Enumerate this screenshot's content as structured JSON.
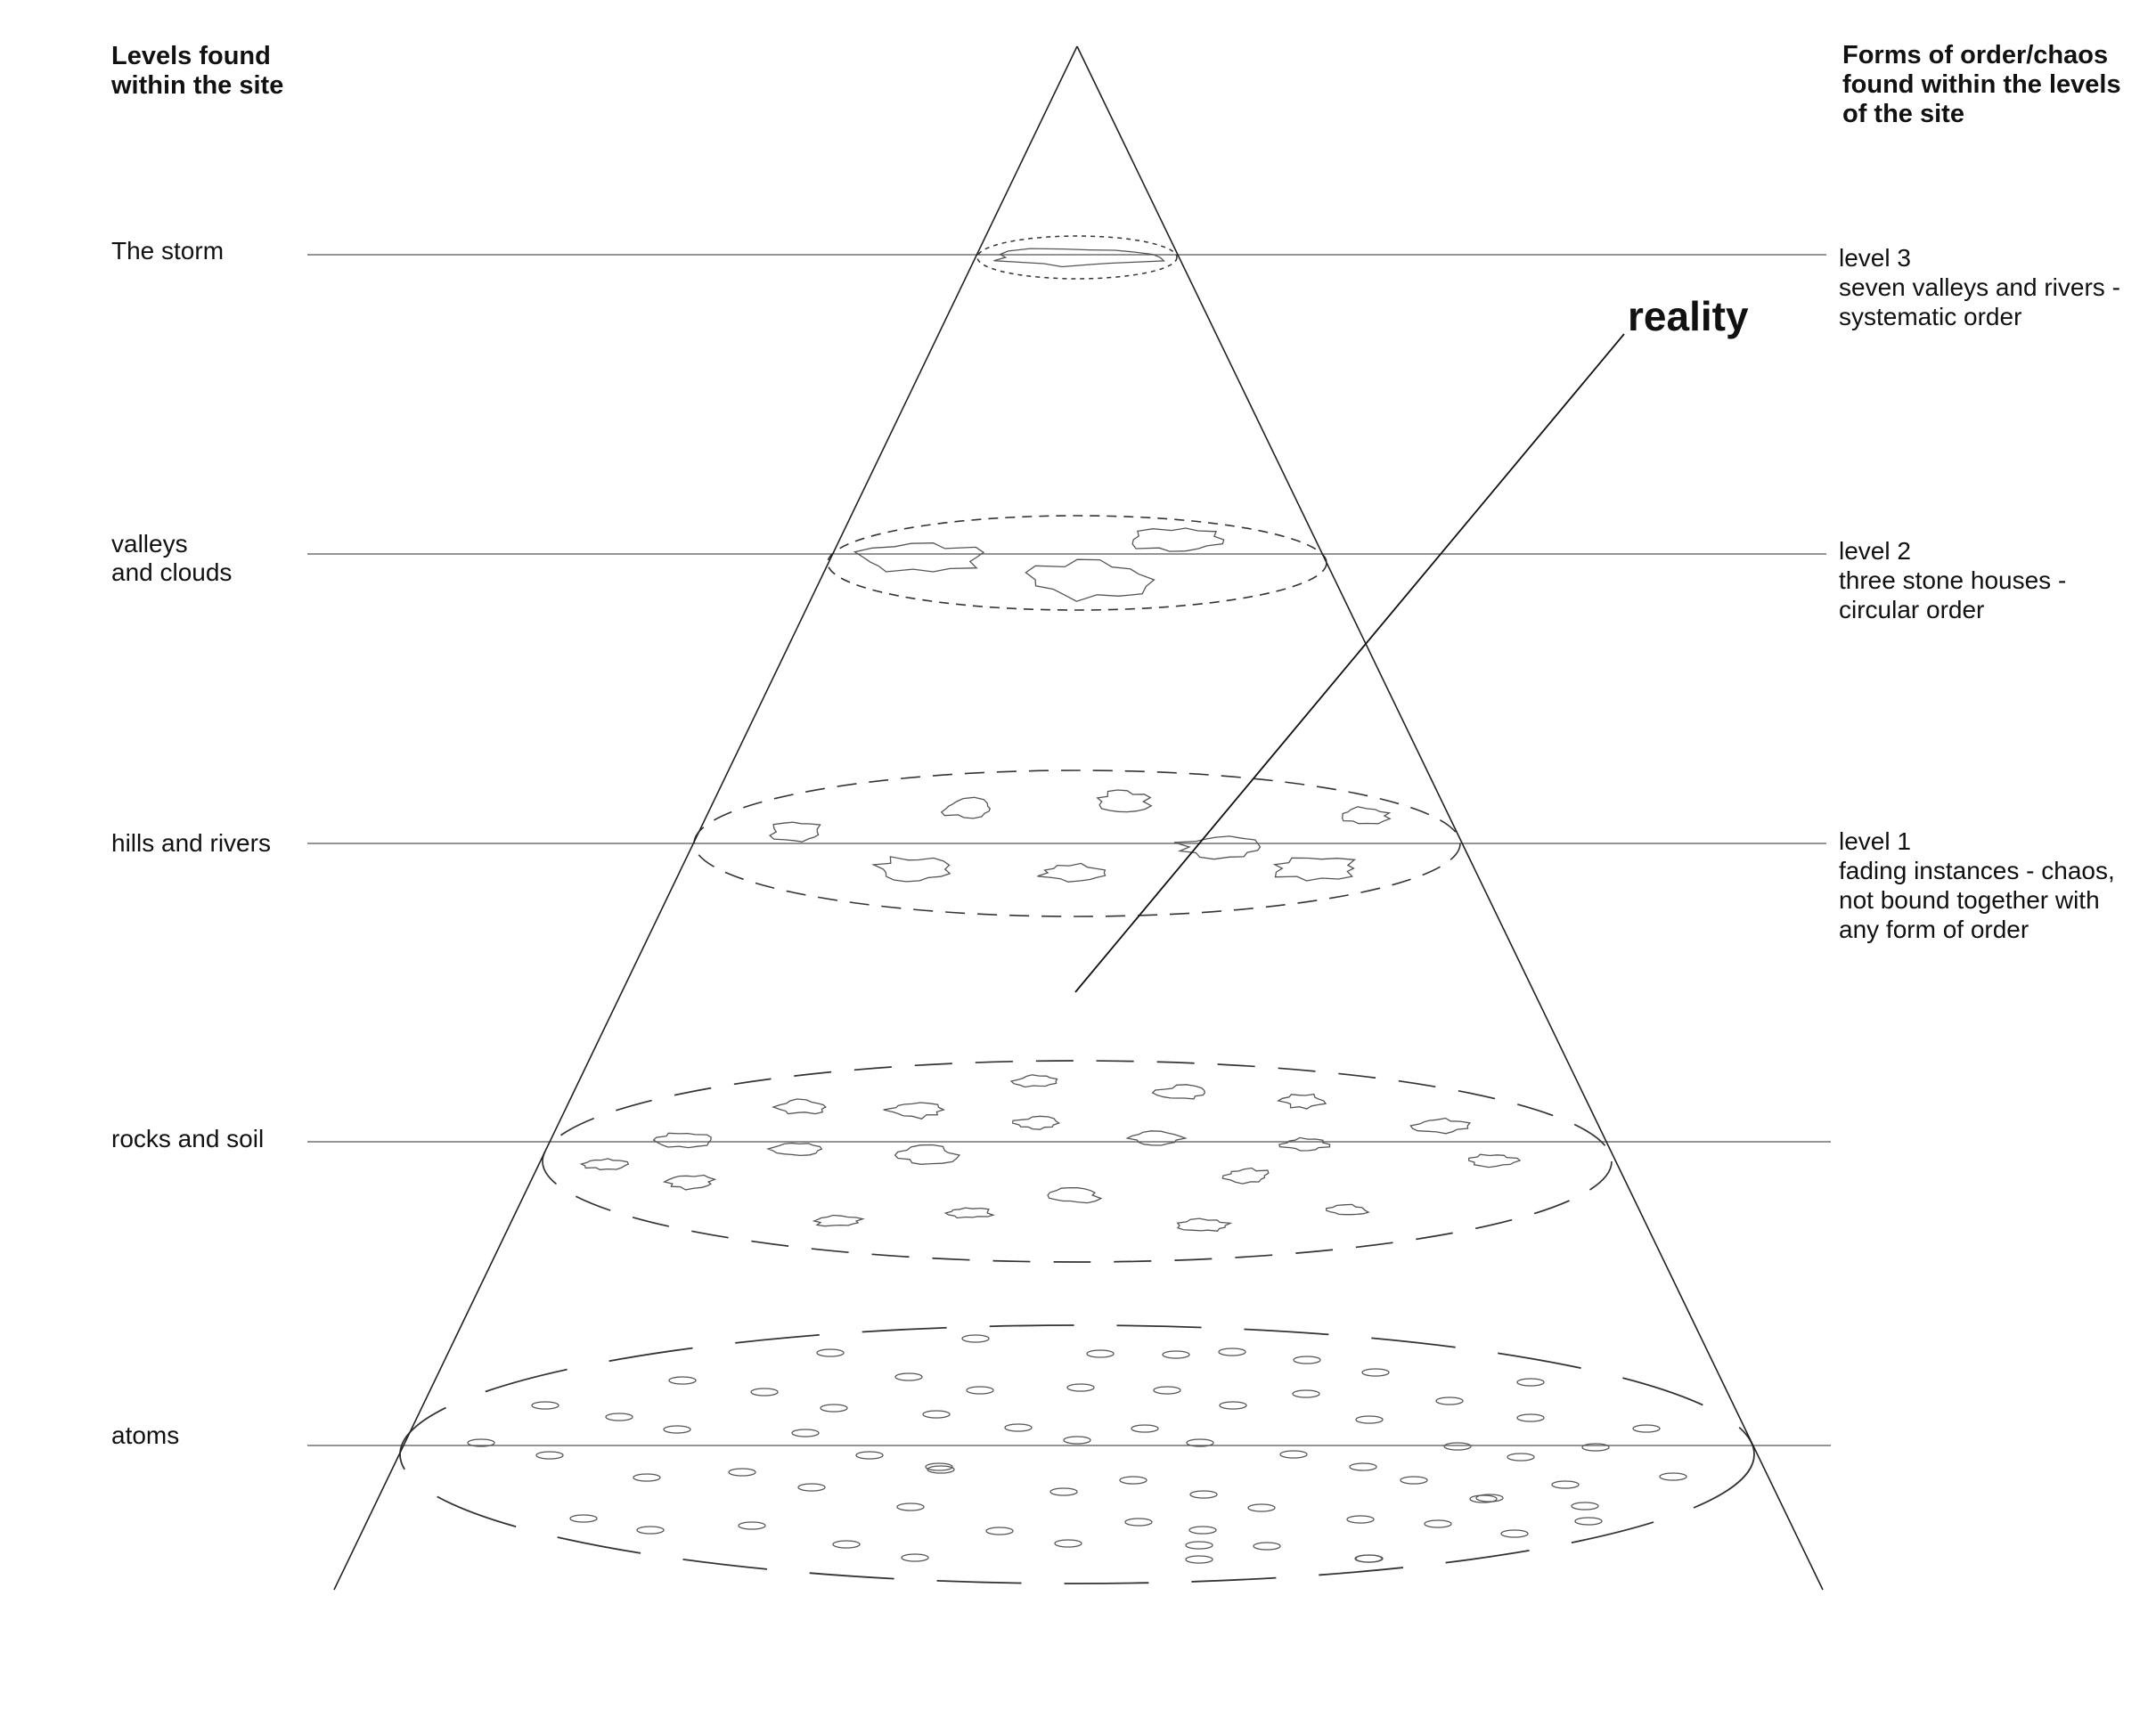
{
  "left_heading": "Levels found\nwithin the site",
  "right_heading": "Forms of order/chaos\nfound within the levels\nof the site",
  "reality_label": "reality",
  "levels": [
    {
      "name": "The storm",
      "description": "level 3\nseven valleys and rivers  -\nsystematic order"
    },
    {
      "name": "valleys\nand clouds",
      "description": "level 2\nthree stone houses -\ncircular order"
    },
    {
      "name": "hills and rivers",
      "description": "level 1\nfading instances - chaos,\nnot bound together with\nany form of order"
    },
    {
      "name": "rocks and soil",
      "description": ""
    },
    {
      "name": "atoms",
      "description": ""
    }
  ]
}
